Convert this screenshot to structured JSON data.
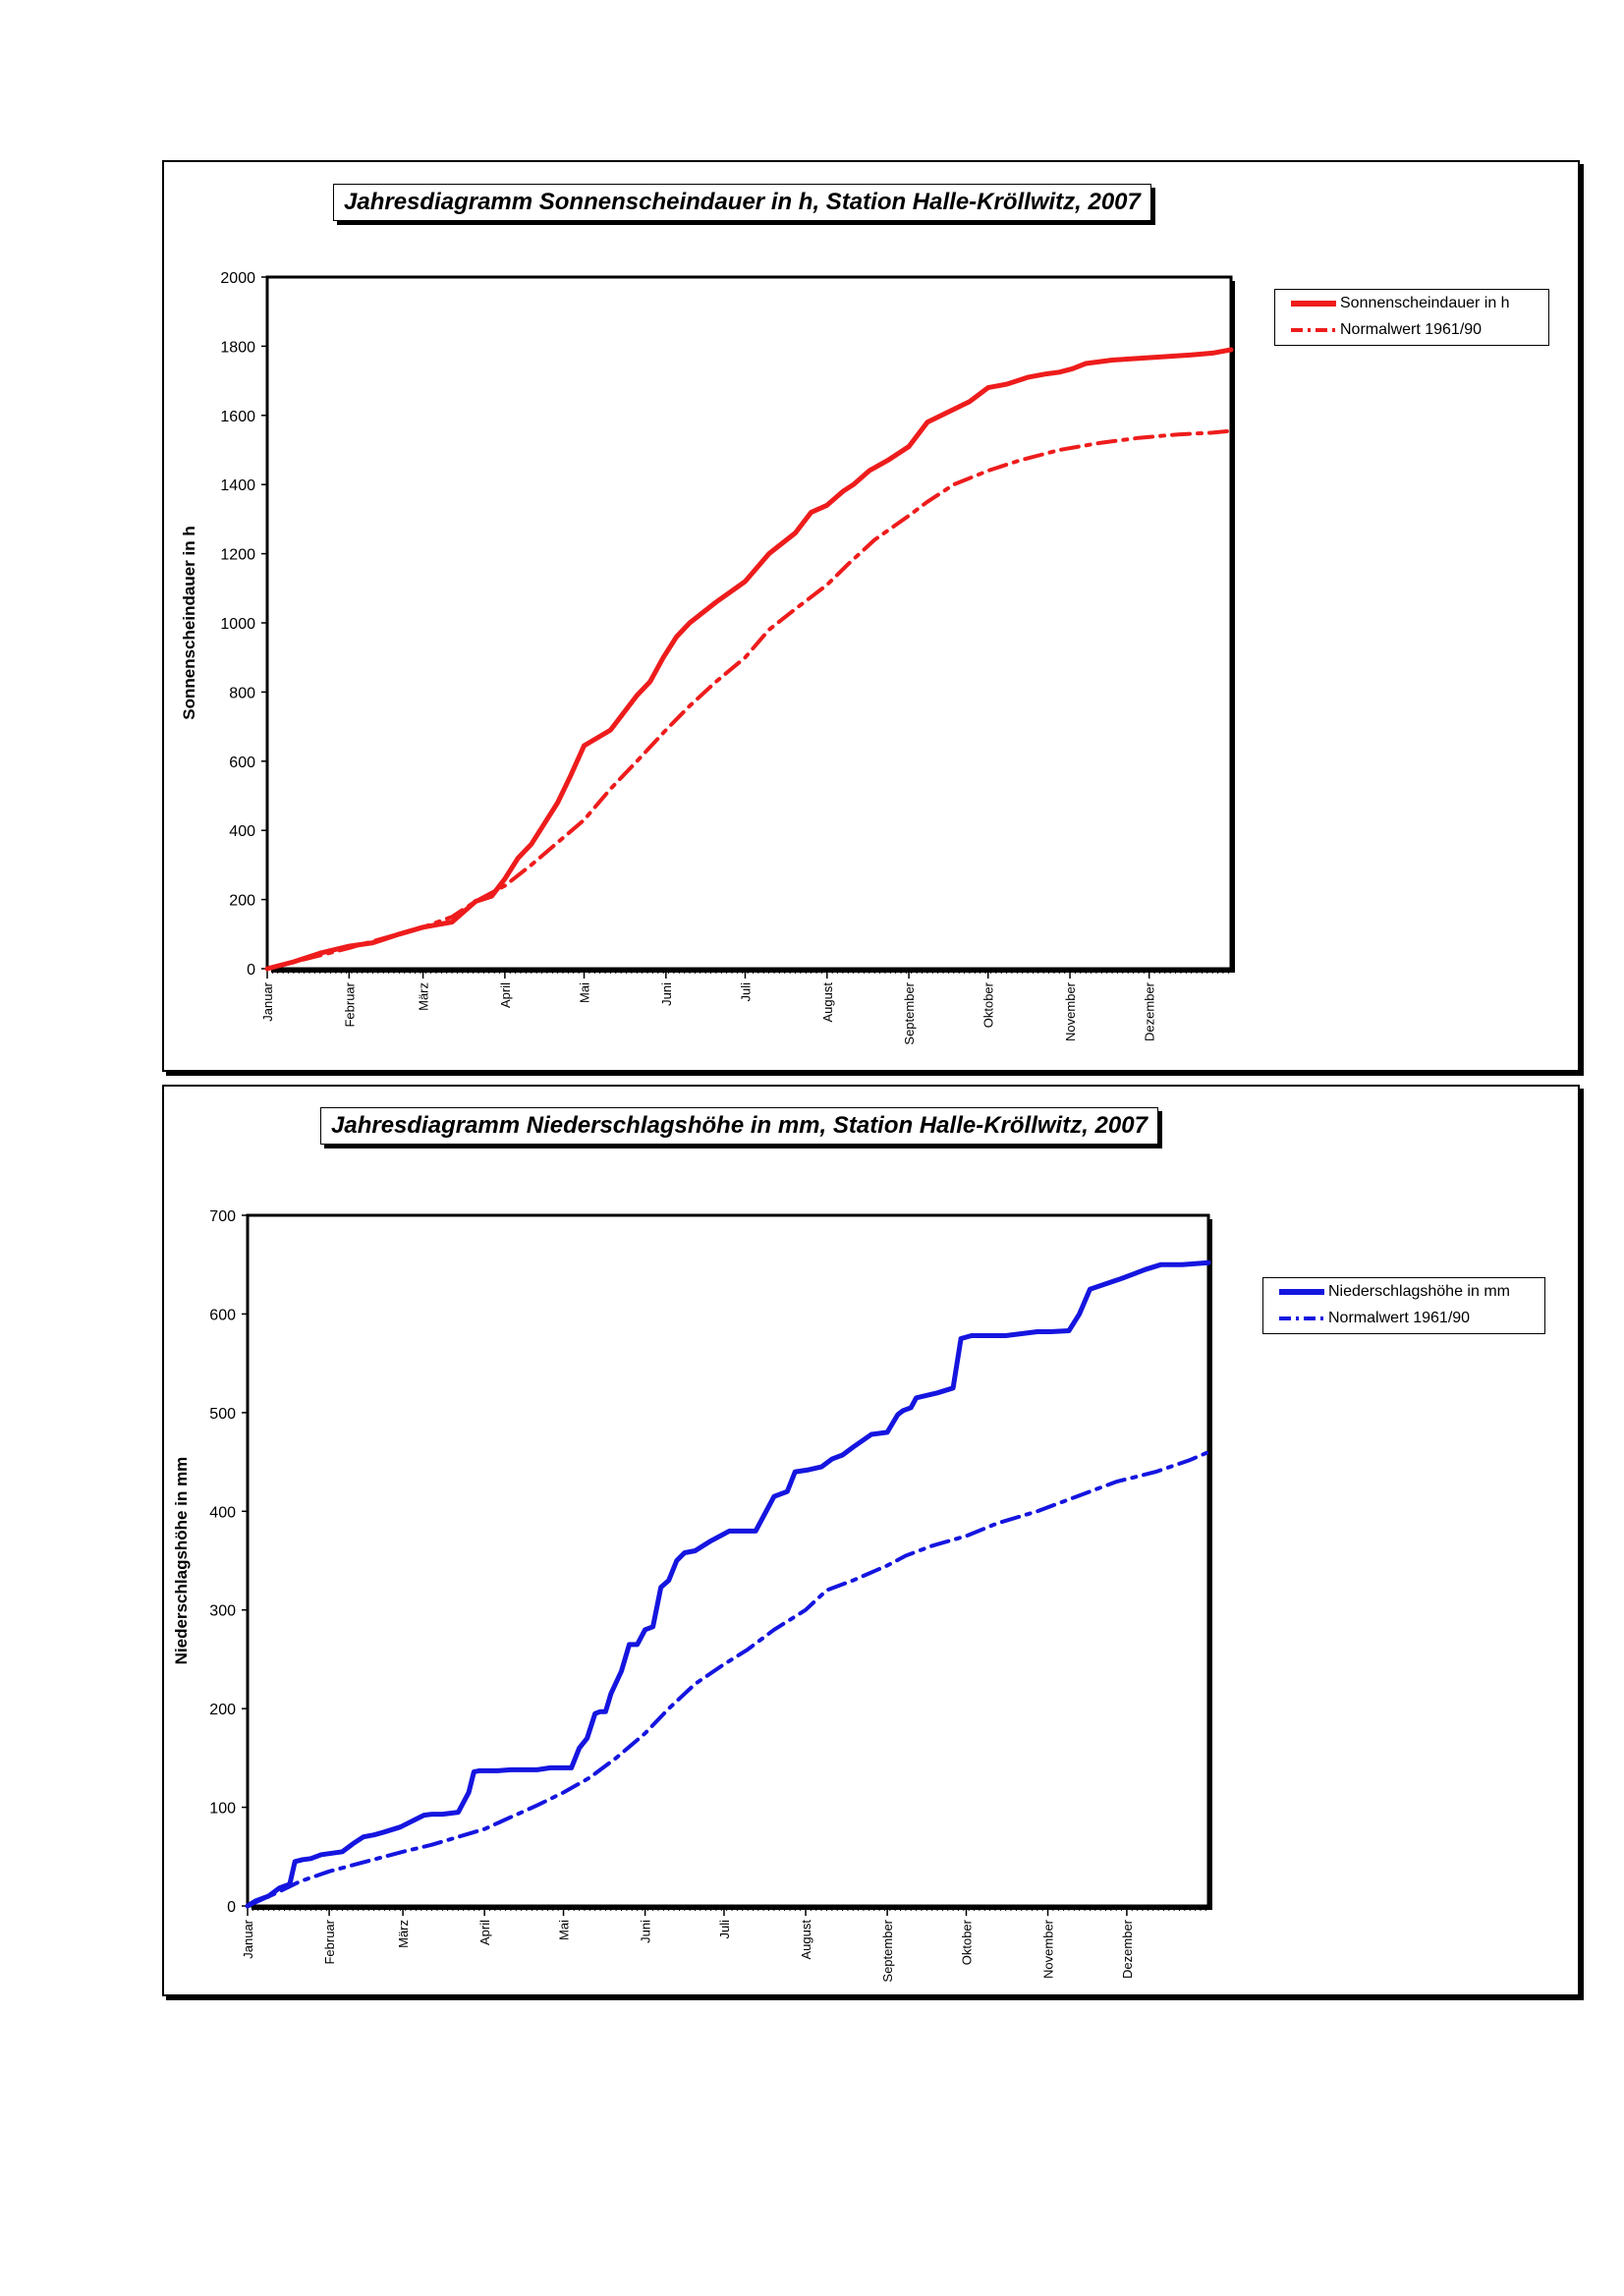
{
  "chart_data": [
    {
      "type": "line",
      "title": "Jahresdiagramm Sonnenscheindauer in h,  Station Halle-Kröllwitz, 2007",
      "xlabel": "",
      "ylabel": "Sonnenscheindauer in h",
      "ylim": [
        0,
        2000
      ],
      "yticks": [
        "0",
        "200",
        "400",
        "600",
        "800",
        "1000",
        "1200",
        "1400",
        "1600",
        "1800",
        "2000"
      ],
      "xlim": [
        0,
        365
      ],
      "months": [
        "Januar",
        "Februar",
        "März",
        "April",
        "Mai",
        "Juni",
        "Juli",
        "August",
        "September",
        "Oktober",
        "November",
        "Dezember"
      ],
      "grid": false,
      "legend": "right",
      "series": [
        {
          "name": "Sonnenscheindauer in h",
          "color": "#ee1c1c",
          "style": "solid",
          "x": [
            0,
            10,
            20,
            31,
            40,
            50,
            59,
            70,
            79,
            85,
            90,
            95,
            100,
            105,
            110,
            115,
            120,
            130,
            140,
            145,
            150,
            155,
            160,
            170,
            181,
            190,
            200,
            206,
            212,
            218,
            222,
            228,
            235,
            243,
            250,
            258,
            266,
            273,
            280,
            288,
            295,
            300,
            305,
            310,
            320,
            330,
            340,
            350,
            358,
            365
          ],
          "y": [
            0,
            20,
            45,
            65,
            75,
            100,
            120,
            135,
            195,
            210,
            260,
            320,
            360,
            420,
            480,
            560,
            645,
            690,
            790,
            830,
            900,
            960,
            1000,
            1060,
            1120,
            1200,
            1260,
            1320,
            1340,
            1380,
            1400,
            1440,
            1470,
            1510,
            1580,
            1610,
            1640,
            1680,
            1690,
            1710,
            1720,
            1725,
            1735,
            1750,
            1760,
            1765,
            1770,
            1775,
            1780,
            1790
          ]
        },
        {
          "name": "Normalwert 1961/90",
          "color": "#ee1c1c",
          "style": "dashdot",
          "x": [
            0,
            31,
            59,
            70,
            79,
            90,
            100,
            110,
            120,
            130,
            140,
            151,
            160,
            170,
            181,
            190,
            200,
            212,
            220,
            230,
            243,
            250,
            260,
            273,
            285,
            300,
            315,
            330,
            345,
            358,
            365
          ],
          "y": [
            0,
            60,
            120,
            150,
            195,
            240,
            300,
            365,
            430,
            520,
            600,
            690,
            760,
            830,
            900,
            980,
            1040,
            1110,
            1170,
            1240,
            1310,
            1350,
            1400,
            1440,
            1470,
            1500,
            1520,
            1535,
            1545,
            1550,
            1555
          ]
        }
      ]
    },
    {
      "type": "line",
      "title": "Jahresdiagramm Niederschlagshöhe in mm,  Station Halle-Kröllwitz, 2007",
      "xlabel": "",
      "ylabel": "Niederschlagshöhe in mm",
      "ylim": [
        0,
        700
      ],
      "yticks": [
        "0",
        "100",
        "200",
        "300",
        "400",
        "500",
        "600",
        "700"
      ],
      "xlim": [
        0,
        365
      ],
      "months": [
        "Januar",
        "Februar",
        "März",
        "April",
        "Mai",
        "Juni",
        "Juli",
        "August",
        "September",
        "Oktober",
        "November",
        "Dezember"
      ],
      "grid": false,
      "legend": "right",
      "series": [
        {
          "name": "Niederschlagshöhe in mm",
          "color": "#1515e0",
          "style": "solid",
          "x": [
            0,
            3,
            8,
            12,
            16,
            18,
            21,
            24,
            28,
            36,
            40,
            44,
            48,
            52,
            58,
            64,
            67,
            70,
            74,
            80,
            84,
            86,
            88,
            90,
            95,
            100,
            110,
            115,
            118,
            120,
            123,
            126,
            129,
            132,
            134,
            136,
            138,
            142,
            145,
            148,
            151,
            154,
            157,
            160,
            163,
            166,
            170,
            176,
            183,
            193,
            200,
            205,
            208,
            213,
            218,
            222,
            226,
            230,
            237,
            243,
            247,
            249,
            252,
            254,
            262,
            268,
            271,
            275,
            280,
            288,
            300,
            305,
            312,
            316,
            320,
            331,
            336,
            341,
            347,
            355,
            365
          ],
          "y": [
            0,
            5,
            10,
            18,
            22,
            45,
            47,
            48,
            52,
            55,
            63,
            70,
            72,
            75,
            80,
            88,
            92,
            93,
            93,
            95,
            115,
            136,
            137,
            137,
            137,
            138,
            138,
            140,
            140,
            140,
            140,
            160,
            170,
            195,
            197,
            197,
            215,
            238,
            265,
            265,
            280,
            283,
            323,
            330,
            350,
            358,
            360,
            370,
            380,
            380,
            415,
            420,
            440,
            442,
            445,
            453,
            457,
            465,
            478,
            480,
            498,
            502,
            505,
            515,
            520,
            525,
            575,
            578,
            578,
            578,
            582,
            582,
            583,
            600,
            625,
            635,
            640,
            645,
            650,
            650,
            652
          ]
        },
        {
          "name": "Normalwert 1961/90",
          "color": "#1515e0",
          "style": "dashdot",
          "x": [
            0,
            10,
            20,
            31,
            45,
            59,
            70,
            80,
            90,
            100,
            110,
            120,
            130,
            140,
            151,
            160,
            170,
            181,
            190,
            200,
            212,
            220,
            230,
            243,
            250,
            260,
            273,
            285,
            300,
            315,
            330,
            345,
            358,
            365
          ],
          "y": [
            0,
            12,
            25,
            35,
            45,
            55,
            62,
            70,
            78,
            90,
            102,
            115,
            130,
            150,
            175,
            200,
            225,
            245,
            260,
            280,
            300,
            320,
            330,
            345,
            355,
            365,
            375,
            388,
            400,
            415,
            430,
            440,
            452,
            460
          ]
        }
      ]
    }
  ]
}
